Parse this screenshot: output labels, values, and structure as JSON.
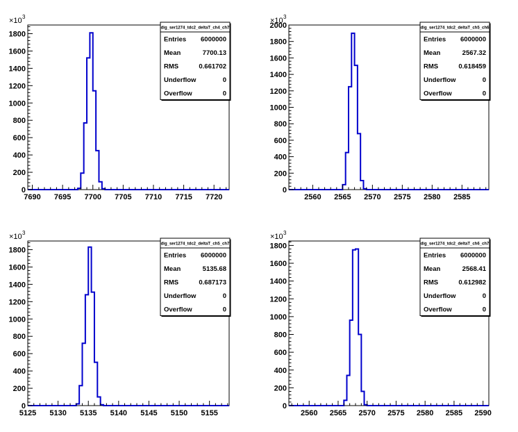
{
  "chart_data": [
    {
      "type": "histogram",
      "stats": {
        "title": "dig_ser1274_tdc2_deltaT_ch4_ch7",
        "rows": [
          {
            "label": "Entries",
            "value": "6000000"
          },
          {
            "label": "Mean",
            "value": "7700.13"
          },
          {
            "label": "RMS",
            "value": "0.661702"
          },
          {
            "label": "Underflow",
            "value": "0"
          },
          {
            "label": "Overflow",
            "value": "0"
          }
        ]
      },
      "y_multiplier": {
        "base": "×10",
        "exponent": "3"
      },
      "xlim": [
        7689.25,
        7722.5
      ],
      "ylim": [
        0,
        1900
      ],
      "xticks": [
        7690,
        7695,
        7700,
        7705,
        7710,
        7715,
        7720
      ],
      "yticks": [
        0,
        200,
        400,
        600,
        800,
        1000,
        1200,
        1400,
        1600,
        1800
      ],
      "bin_width": 0.5,
      "bins": [
        {
          "x": 7697.5,
          "value": 15
        },
        {
          "x": 7698.0,
          "value": 190
        },
        {
          "x": 7698.5,
          "value": 770
        },
        {
          "x": 7699.0,
          "value": 1520
        },
        {
          "x": 7699.5,
          "value": 1810
        },
        {
          "x": 7700.0,
          "value": 1140
        },
        {
          "x": 7700.5,
          "value": 450
        },
        {
          "x": 7701.0,
          "value": 90
        },
        {
          "x": 7701.5,
          "value": 10
        }
      ]
    },
    {
      "type": "histogram",
      "stats": {
        "title": "dig_ser1274_tdc2_deltaT_ch5_ch6",
        "rows": [
          {
            "label": "Entries",
            "value": "6000000"
          },
          {
            "label": "Mean",
            "value": "2567.32"
          },
          {
            "label": "RMS",
            "value": "0.618459"
          },
          {
            "label": "Underflow",
            "value": "0"
          },
          {
            "label": "Overflow",
            "value": "0"
          }
        ]
      },
      "y_multiplier": {
        "base": "×10",
        "exponent": "3"
      },
      "xlim": [
        2556,
        2589.5
      ],
      "ylim": [
        0,
        2000
      ],
      "xticks": [
        2560,
        2565,
        2570,
        2575,
        2580,
        2585
      ],
      "yticks": [
        0,
        200,
        400,
        600,
        800,
        1000,
        1200,
        1400,
        1600,
        1800,
        2000
      ],
      "bin_width": 0.5,
      "bins": [
        {
          "x": 2565.0,
          "value": 60
        },
        {
          "x": 2565.5,
          "value": 450
        },
        {
          "x": 2566.0,
          "value": 1250
        },
        {
          "x": 2566.5,
          "value": 1900
        },
        {
          "x": 2567.0,
          "value": 1510
        },
        {
          "x": 2567.5,
          "value": 680
        },
        {
          "x": 2568.0,
          "value": 110
        },
        {
          "x": 2568.5,
          "value": 10
        }
      ]
    },
    {
      "type": "histogram",
      "stats": {
        "title": "dig_ser1274_tdc2_deltaT_ch5_ch7",
        "rows": [
          {
            "label": "Entries",
            "value": "6000000"
          },
          {
            "label": "Mean",
            "value": "5135.68"
          },
          {
            "label": "RMS",
            "value": "0.687173"
          },
          {
            "label": "Underflow",
            "value": "0"
          },
          {
            "label": "Overflow",
            "value": "0"
          }
        ]
      },
      "y_multiplier": {
        "base": "×10",
        "exponent": "3"
      },
      "xlim": [
        5125,
        5158.25
      ],
      "ylim": [
        0,
        1900
      ],
      "xticks": [
        5125,
        5130,
        5135,
        5140,
        5145,
        5150,
        5155
      ],
      "yticks": [
        0,
        200,
        400,
        600,
        800,
        1000,
        1200,
        1400,
        1600,
        1800
      ],
      "bin_width": 0.5,
      "bins": [
        {
          "x": 5133.0,
          "value": 20
        },
        {
          "x": 5133.5,
          "value": 230
        },
        {
          "x": 5134.0,
          "value": 720
        },
        {
          "x": 5134.5,
          "value": 1280
        },
        {
          "x": 5135.0,
          "value": 1830
        },
        {
          "x": 5135.5,
          "value": 1310
        },
        {
          "x": 5136.0,
          "value": 500
        },
        {
          "x": 5136.5,
          "value": 100
        },
        {
          "x": 5137.0,
          "value": 10
        }
      ]
    },
    {
      "type": "histogram",
      "stats": {
        "title": "dig_ser1274_tdc2_deltaT_ch6_ch7",
        "rows": [
          {
            "label": "Entries",
            "value": "6000000"
          },
          {
            "label": "Mean",
            "value": "2568.41"
          },
          {
            "label": "RMS",
            "value": "0.612982"
          },
          {
            "label": "Underflow",
            "value": "0"
          },
          {
            "label": "Overflow",
            "value": "0"
          }
        ]
      },
      "y_multiplier": {
        "base": "×10",
        "exponent": "3"
      },
      "xlim": [
        2556.5,
        2591
      ],
      "ylim": [
        0,
        1850
      ],
      "xticks": [
        2560,
        2565,
        2570,
        2575,
        2580,
        2585,
        2590
      ],
      "yticks": [
        0,
        200,
        400,
        600,
        800,
        1000,
        1200,
        1400,
        1600,
        1800
      ],
      "bin_width": 0.5,
      "bins": [
        {
          "x": 2566.0,
          "value": 60
        },
        {
          "x": 2566.5,
          "value": 340
        },
        {
          "x": 2567.0,
          "value": 960
        },
        {
          "x": 2567.5,
          "value": 1750
        },
        {
          "x": 2568.0,
          "value": 1760
        },
        {
          "x": 2568.5,
          "value": 800
        },
        {
          "x": 2569.0,
          "value": 160
        },
        {
          "x": 2569.5,
          "value": 10
        }
      ]
    }
  ],
  "colors": {
    "line": "#0000cc",
    "axis": "#000000",
    "background": "#ffffff"
  }
}
